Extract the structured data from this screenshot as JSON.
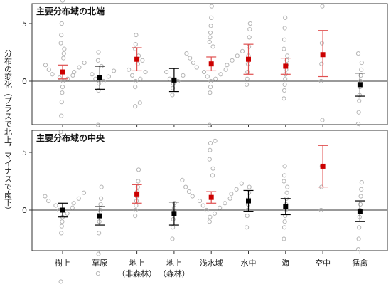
{
  "chart_data": {
    "type": "scatter",
    "ylabel": "分布の変化（プラスで北上，マイナスで南下）",
    "categories": [
      "樹上",
      "草原",
      "地上\n（非森林）",
      "地上\n（森林）",
      "浅水域",
      "水中",
      "海",
      "空中",
      "猛禽"
    ],
    "ylim": [
      -6,
      12.5
    ],
    "yticks": [
      -5,
      0,
      5,
      10
    ],
    "panels": [
      {
        "title": "主要分布域の北端",
        "series": [
          {
            "name": "",
            "x": [],
            "values": []
          }
        ],
        "means": [
          0.8,
          0.3,
          1.9,
          0.1,
          1.5,
          1.9,
          1.3,
          2.3,
          -0.3
        ],
        "ci_low": [
          0.2,
          -0.7,
          0.9,
          -0.9,
          0.9,
          0.6,
          0.6,
          0.4,
          -1.3
        ],
        "ci_high": [
          1.4,
          1.3,
          2.9,
          1.1,
          2.1,
          3.2,
          2.0,
          4.4,
          0.7
        ],
        "mean_colors": [
          "#cc0000",
          "#000000",
          "#cc0000",
          "#000000",
          "#cc0000",
          "#cc0000",
          "#cc0000",
          "#cc0000",
          "#000000"
        ],
        "points": [
          [
            -4.4,
            -3.0,
            -1.8,
            -1.0,
            -0.5,
            0.0,
            0.2,
            0.3,
            0.5,
            0.6,
            0.8,
            1.0,
            1.2,
            1.4,
            1.6,
            2.0,
            2.4,
            2.8,
            3.3,
            4.0,
            5.0,
            6.0,
            7.0
          ],
          [
            -3.8,
            -0.8,
            -0.2,
            0.0,
            0.2,
            0.4,
            0.6,
            0.9,
            1.3,
            1.8,
            2.5
          ],
          [
            -0.5,
            0.0,
            0.2,
            0.5,
            0.8,
            1.0,
            1.5,
            1.8,
            2.2,
            2.8,
            3.2,
            4.0,
            12.3,
            12.4
          ],
          [
            -1.2,
            -0.6,
            -0.2,
            0.0,
            0.2,
            0.5,
            0.8
          ],
          [
            -3.8,
            -1.0,
            -0.5,
            0.0,
            0.2,
            0.4,
            0.6,
            0.8,
            1.0,
            1.2,
            1.4,
            1.6,
            1.8,
            2.0,
            2.2,
            2.4,
            2.6,
            3.0,
            3.4,
            3.8,
            4.2,
            4.8,
            5.5,
            6.5,
            7.5,
            8.8
          ],
          [
            -0.3,
            0.2,
            0.8,
            1.5,
            2.2,
            3.0,
            3.8,
            4.5,
            5.0
          ],
          [
            -1.5,
            -0.8,
            -0.3,
            0.2,
            0.6,
            1.0,
            1.4,
            1.8,
            2.2,
            2.8,
            3.6,
            4.6,
            5.5,
            8.0
          ],
          [
            0.0,
            1.5,
            3.3,
            6.5
          ],
          [
            -3.7,
            -2.7,
            -1.7,
            -1.2,
            -0.5,
            0.0,
            0.5,
            1.0,
            1.6,
            2.4
          ]
        ]
      },
      {
        "title": "主要分布域の中央",
        "series": [
          {
            "name": "",
            "x": [],
            "values": []
          }
        ],
        "means": [
          0.0,
          -0.5,
          1.4,
          -0.3,
          1.1,
          0.8,
          0.3,
          3.8,
          -0.1
        ],
        "ci_low": [
          -0.6,
          -1.3,
          0.6,
          -1.3,
          0.6,
          -0.1,
          -0.4,
          2.0,
          -1.0
        ],
        "ci_high": [
          0.6,
          0.3,
          2.2,
          0.7,
          1.6,
          1.7,
          1.0,
          5.6,
          0.8
        ],
        "mean_colors": [
          "#000000",
          "#000000",
          "#cc0000",
          "#000000",
          "#cc0000",
          "#000000",
          "#000000",
          "#cc0000",
          "#000000"
        ],
        "points": [
          [
            -6.2,
            -2.0,
            -1.4,
            -1.0,
            -0.6,
            -0.3,
            0.0,
            0.2,
            0.4,
            0.6,
            0.8,
            1.0,
            1.2,
            1.5,
            6.2
          ],
          [
            -5.5,
            -3.8,
            -2.0,
            -1.0,
            -0.5,
            0.0,
            0.5,
            1.0,
            2.0
          ],
          [
            -0.5,
            0.0,
            0.4,
            0.8,
            1.2,
            1.6,
            2.0,
            2.5,
            3.5,
            9.0,
            9.3
          ],
          [
            -2.5,
            -1.5,
            -0.8,
            -0.2,
            0.2,
            0.6
          ],
          [
            -1.0,
            -0.6,
            -0.3,
            0.0,
            0.2,
            0.4,
            0.6,
            0.8,
            1.0,
            1.2,
            1.4,
            1.6,
            1.8,
            2.0,
            2.3,
            2.6,
            3.0,
            3.6,
            4.4,
            5.2,
            5.8,
            6.0
          ],
          [
            -1.5,
            -0.5,
            0.0,
            0.5,
            1.0,
            1.5,
            2.0
          ],
          [
            -2.5,
            -1.5,
            -1.0,
            -0.5,
            0.0,
            0.5,
            1.0,
            1.5,
            2.0,
            2.5,
            3.0,
            3.8
          ],
          [
            0.0,
            2.0,
            3.8,
            7.8
          ],
          [
            -3.4,
            -2.5,
            -1.5,
            -0.6,
            0.0,
            0.5,
            1.2,
            1.8,
            2.4
          ]
        ]
      }
    ],
    "grid": false,
    "legend": "none"
  }
}
